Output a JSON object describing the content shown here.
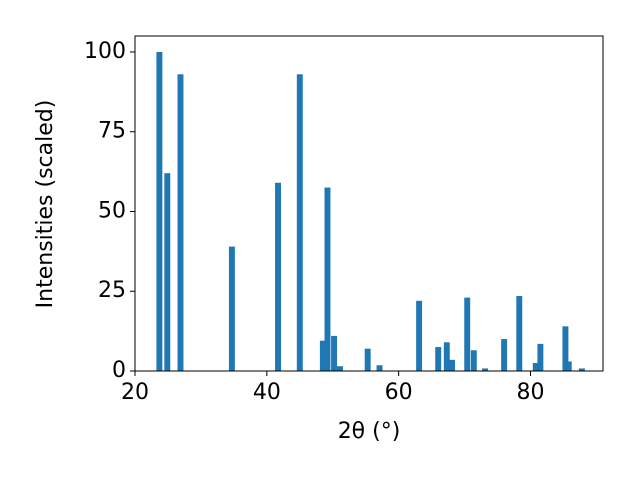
{
  "chart_data": {
    "type": "bar",
    "x": [
      23.7,
      24.9,
      26.9,
      34.7,
      41.7,
      45.0,
      48.5,
      49.2,
      50.2,
      51.1,
      55.3,
      57.1,
      63.1,
      66.0,
      67.3,
      68.1,
      70.4,
      71.4,
      73.1,
      76.0,
      78.3,
      80.8,
      81.5,
      85.3,
      85.8,
      87.8
    ],
    "values": [
      100,
      62,
      93,
      39,
      59,
      93,
      9.5,
      57.5,
      11,
      1.5,
      7,
      1.8,
      22,
      7.5,
      9,
      3.5,
      23,
      6.5,
      0.8,
      10,
      23.5,
      2.5,
      8.5,
      14,
      3,
      0.8
    ],
    "color": "#1f77b4",
    "xlabel": "2θ (°)",
    "ylabel": "Intensities (scaled)",
    "xlim": [
      20,
      91
    ],
    "ylim": [
      0,
      105
    ],
    "xticks": [
      20,
      40,
      60,
      80
    ],
    "yticks": [
      0,
      25,
      50,
      75,
      100
    ]
  }
}
